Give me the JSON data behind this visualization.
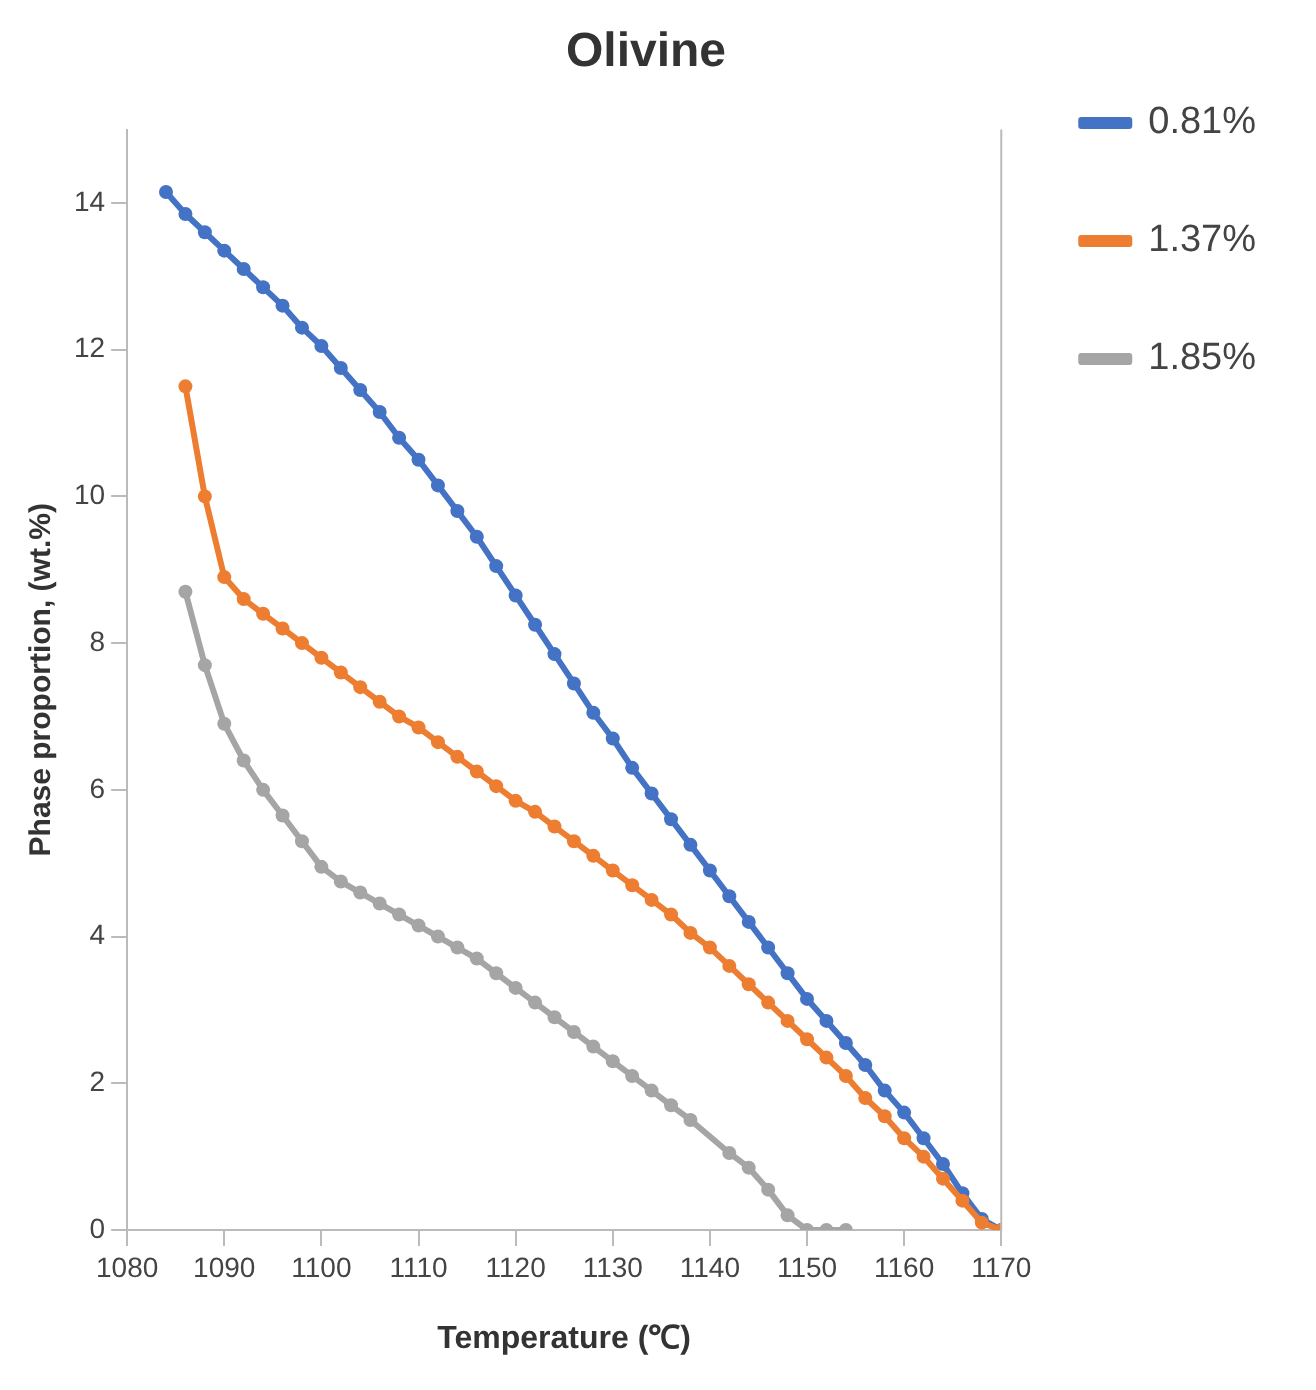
{
  "chart_data": {
    "type": "line",
    "title": "Olivine",
    "xlabel": "Temperature (℃)",
    "ylabel": "Phase proportion, (wt.%)",
    "xlim": [
      1080,
      1170
    ],
    "xticks": [
      1080,
      1090,
      1100,
      1110,
      1120,
      1130,
      1140,
      1150,
      1160,
      1170
    ],
    "ylim": [
      0,
      15
    ],
    "yticks": [
      0,
      2,
      4,
      6,
      8,
      10,
      12,
      14
    ],
    "grid": false,
    "legend": "right",
    "marker": "circle",
    "line_style": "solid",
    "series": [
      {
        "name": "0.81%",
        "color": "#4472c4",
        "x": [
          1084,
          1086,
          1088,
          1090,
          1092,
          1094,
          1096,
          1098,
          1100,
          1102,
          1104,
          1106,
          1108,
          1110,
          1112,
          1114,
          1116,
          1118,
          1120,
          1122,
          1124,
          1126,
          1128,
          1130,
          1132,
          1134,
          1136,
          1138,
          1140,
          1142,
          1144,
          1146,
          1148,
          1150,
          1152,
          1154,
          1156,
          1158,
          1160,
          1162,
          1164,
          1166,
          1168,
          1170
        ],
        "values": [
          14.15,
          13.85,
          13.6,
          13.35,
          13.1,
          12.85,
          12.6,
          12.3,
          12.05,
          11.75,
          11.45,
          11.15,
          10.8,
          10.5,
          10.15,
          9.8,
          9.45,
          9.05,
          8.65,
          8.25,
          7.85,
          7.45,
          7.05,
          6.7,
          6.3,
          5.95,
          5.6,
          5.25,
          4.9,
          4.55,
          4.2,
          3.85,
          3.5,
          3.15,
          2.85,
          2.55,
          2.25,
          1.9,
          1.6,
          1.25,
          0.9,
          0.5,
          0.15,
          0
        ]
      },
      {
        "name": "1.37%",
        "color": "#ed7d31",
        "x": [
          1086,
          1088,
          1090,
          1092,
          1094,
          1096,
          1098,
          1100,
          1102,
          1104,
          1106,
          1108,
          1110,
          1112,
          1114,
          1116,
          1118,
          1120,
          1122,
          1124,
          1126,
          1128,
          1130,
          1132,
          1134,
          1136,
          1138,
          1140,
          1142,
          1144,
          1146,
          1148,
          1150,
          1152,
          1154,
          1156,
          1158,
          1160,
          1162,
          1164,
          1166,
          1168,
          1170
        ],
        "values": [
          11.5,
          10.0,
          8.9,
          8.6,
          8.4,
          8.2,
          8.0,
          7.8,
          7.6,
          7.4,
          7.2,
          7.0,
          6.85,
          6.65,
          6.45,
          6.25,
          6.05,
          5.85,
          5.7,
          5.5,
          5.3,
          5.1,
          4.9,
          4.7,
          4.5,
          4.3,
          4.05,
          3.85,
          3.6,
          3.35,
          3.1,
          2.85,
          2.6,
          2.35,
          2.1,
          1.8,
          1.55,
          1.25,
          1.0,
          0.7,
          0.4,
          0.1,
          0
        ]
      },
      {
        "name": "1.85%",
        "color": "#a5a5a5",
        "x": [
          1086,
          1088,
          1090,
          1092,
          1094,
          1096,
          1098,
          1100,
          1102,
          1104,
          1106,
          1108,
          1110,
          1112,
          1114,
          1116,
          1118,
          1120,
          1122,
          1124,
          1126,
          1128,
          1130,
          1132,
          1134,
          1136,
          1138,
          1142,
          1144,
          1146,
          1148,
          1150,
          1152,
          1154
        ],
        "values": [
          8.7,
          7.7,
          6.9,
          6.4,
          6.0,
          5.65,
          5.3,
          4.95,
          4.75,
          4.6,
          4.45,
          4.3,
          4.15,
          4.0,
          3.85,
          3.7,
          3.5,
          3.3,
          3.1,
          2.9,
          2.7,
          2.5,
          2.3,
          2.1,
          1.9,
          1.7,
          1.5,
          1.05,
          0.85,
          0.55,
          0.2,
          0,
          0,
          0
        ]
      }
    ]
  }
}
